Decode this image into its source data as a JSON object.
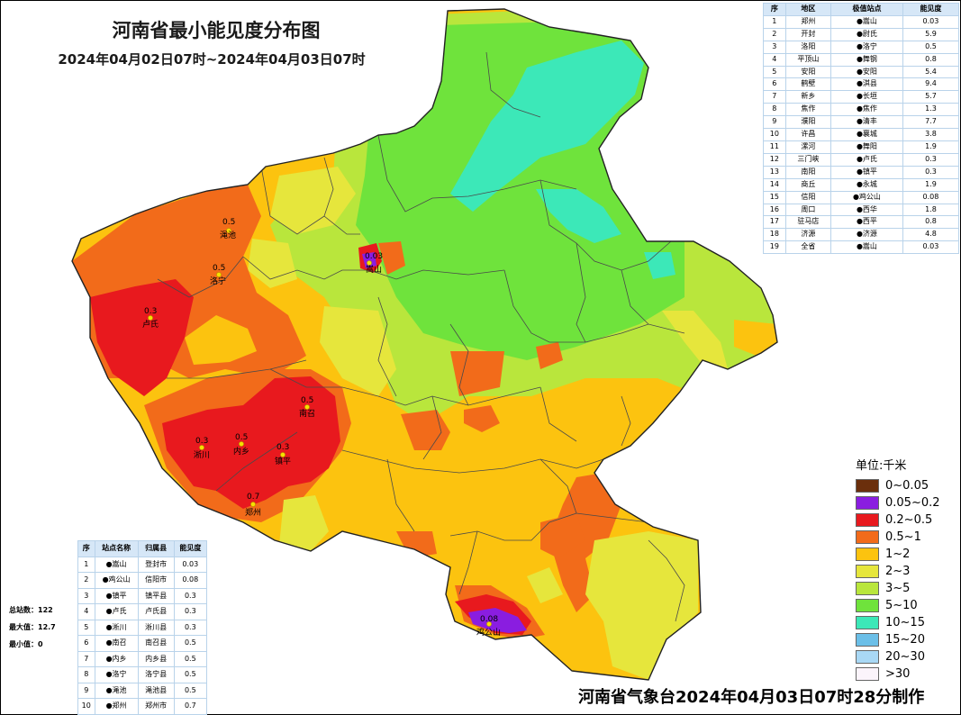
{
  "header": {
    "title": "河南省最小能见度分布图",
    "subtitle": "2024年04月02日07时~2024年04月03日07时"
  },
  "city_table": {
    "columns": [
      "序",
      "地区",
      "极值站点",
      "能见度"
    ],
    "rows": [
      [
        "1",
        "郑州",
        "●嵩山",
        "0.03"
      ],
      [
        "2",
        "开封",
        "●尉氏",
        "5.9"
      ],
      [
        "3",
        "洛阳",
        "●洛宁",
        "0.5"
      ],
      [
        "4",
        "平顶山",
        "●舞钢",
        "0.8"
      ],
      [
        "5",
        "安阳",
        "●安阳",
        "5.4"
      ],
      [
        "6",
        "鹤壁",
        "●淇县",
        "9.4"
      ],
      [
        "7",
        "新乡",
        "●长垣",
        "5.7"
      ],
      [
        "8",
        "焦作",
        "●焦作",
        "1.3"
      ],
      [
        "9",
        "濮阳",
        "●清丰",
        "7.7"
      ],
      [
        "10",
        "许昌",
        "●襄城",
        "3.8"
      ],
      [
        "11",
        "漯河",
        "●舞阳",
        "1.9"
      ],
      [
        "12",
        "三门峡",
        "●卢氏",
        "0.3"
      ],
      [
        "13",
        "南阳",
        "●镇平",
        "0.3"
      ],
      [
        "14",
        "商丘",
        "●永城",
        "1.9"
      ],
      [
        "15",
        "信阳",
        "●鸡公山",
        "0.08"
      ],
      [
        "16",
        "周口",
        "●西华",
        "1.8"
      ],
      [
        "17",
        "驻马店",
        "●西平",
        "0.8"
      ],
      [
        "18",
        "济源",
        "●济源",
        "4.8"
      ],
      [
        "19",
        "全省",
        "●嵩山",
        "0.03"
      ]
    ]
  },
  "station_table": {
    "columns": [
      "序",
      "站点名称",
      "归属县",
      "能见度"
    ],
    "rows": [
      [
        "1",
        "●嵩山",
        "登封市",
        "0.03"
      ],
      [
        "2",
        "●鸡公山",
        "信阳市",
        "0.08"
      ],
      [
        "3",
        "●镇平",
        "镇平县",
        "0.3"
      ],
      [
        "4",
        "●卢氏",
        "卢氏县",
        "0.3"
      ],
      [
        "5",
        "●淅川",
        "淅川县",
        "0.3"
      ],
      [
        "6",
        "●南召",
        "南召县",
        "0.5"
      ],
      [
        "7",
        "●内乡",
        "内乡县",
        "0.5"
      ],
      [
        "8",
        "●洛宁",
        "洛宁县",
        "0.5"
      ],
      [
        "9",
        "●渑池",
        "渑池县",
        "0.5"
      ],
      [
        "10",
        "●郑州",
        "郑州市",
        "0.7"
      ]
    ]
  },
  "stats": {
    "total": "总站数：122",
    "max": "最大值：12.7",
    "min": "最小值：0"
  },
  "legend": {
    "unit": "单位:千米",
    "items": [
      {
        "label": "0~0.05",
        "color": "#6b2f0c"
      },
      {
        "label": "0.05~0.2",
        "color": "#8a1de0"
      },
      {
        "label": "0.2~0.5",
        "color": "#e8191e"
      },
      {
        "label": "0.5~1",
        "color": "#f26b1a"
      },
      {
        "label": "1~2",
        "color": "#fcc30f"
      },
      {
        "label": "2~3",
        "color": "#e6e63c"
      },
      {
        "label": "3~5",
        "color": "#b9e63c"
      },
      {
        "label": "5~10",
        "color": "#6fe33c"
      },
      {
        "label": "10~15",
        "color": "#3ce8b8"
      },
      {
        "label": "15~20",
        "color": "#6bbfe8"
      },
      {
        "label": "20~30",
        "color": "#a9d8f5"
      },
      {
        "label": ">30",
        "color": "#fbf4fb"
      }
    ]
  },
  "map_labels": [
    {
      "value": "0.03",
      "name": "嵩山"
    },
    {
      "value": "0.5",
      "name": "渑池"
    },
    {
      "value": "0.5",
      "name": "洛宁"
    },
    {
      "value": "0.3",
      "name": "卢氏"
    },
    {
      "value": "0.5",
      "name": "南召"
    },
    {
      "value": "0.3",
      "name": "淅川"
    },
    {
      "value": "0.5",
      "name": "内乡"
    },
    {
      "value": "0.3",
      "name": "镇平"
    },
    {
      "value": "0.7",
      "name": "郑州"
    },
    {
      "value": "0.08",
      "name": "鸡公山"
    }
  ],
  "footer": "河南省气象台2024年04月03日07时28分制作"
}
